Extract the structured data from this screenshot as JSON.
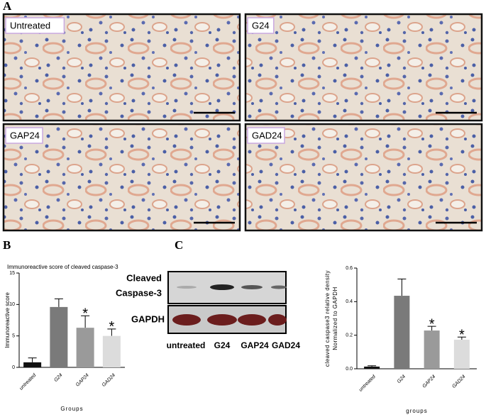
{
  "figure": {
    "panel_labels": [
      "A",
      "B",
      "C"
    ],
    "images": [
      {
        "label": "Untreated"
      },
      {
        "label": "G24"
      },
      {
        "label": "GAP24"
      },
      {
        "label": "GAD24"
      }
    ],
    "blot": {
      "row_labels": [
        "Cleaved",
        "Caspase-3",
        "GAPDH"
      ],
      "lanes": [
        "untreated",
        "G24",
        "GAP24",
        "GAD24"
      ]
    }
  },
  "chart_data": [
    {
      "type": "bar",
      "title": "Immunoreactive score of cleaved caspase-3",
      "y_label": "Immunoreactive score",
      "x_label": "Groups",
      "categories": [
        "untreated",
        "G24",
        "GAP24",
        "GAD24"
      ],
      "values": [
        0.8,
        9.6,
        6.3,
        5.0
      ],
      "errors": [
        0.7,
        1.3,
        1.9,
        1.1
      ],
      "colors": [
        "#111111",
        "#7a7a7a",
        "#9a9a9a",
        "#dcdcdc"
      ],
      "significance": [
        null,
        null,
        "*",
        "*"
      ],
      "ylim": [
        0,
        15
      ],
      "yticks": [
        0,
        5,
        10,
        15
      ]
    },
    {
      "type": "bar",
      "y_label": [
        "cleaved caspase3 relative density",
        "Normalized to GAPDH"
      ],
      "x_label": "groups",
      "categories": [
        "untreated",
        "G24",
        "GAP24",
        "GAD24"
      ],
      "values": [
        0.013,
        0.435,
        0.228,
        0.173
      ],
      "errors": [
        0.005,
        0.1,
        0.025,
        0.016
      ],
      "colors": [
        "#111111",
        "#7a7a7a",
        "#9a9a9a",
        "#dcdcdc"
      ],
      "significance": [
        null,
        null,
        "*",
        "*"
      ],
      "ylim": [
        0,
        0.6
      ],
      "yticks": [
        {
          "value": 0,
          "label": "0.0"
        },
        0.2,
        0.4,
        0.6
      ]
    }
  ]
}
